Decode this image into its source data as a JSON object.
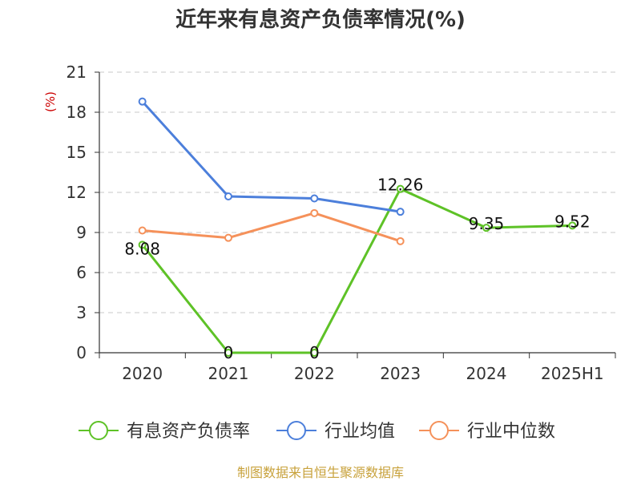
{
  "chart_data": {
    "type": "line",
    "title": "近年来有息资产负债率情况(%)",
    "ylabel": "(%)",
    "xlabel": "",
    "categories": [
      "2020",
      "2021",
      "2022",
      "2023",
      "2024",
      "2025H1"
    ],
    "ylim": [
      0,
      21
    ],
    "yticks": [
      "0",
      "3",
      "6",
      "9",
      "12",
      "15",
      "18",
      "21"
    ],
    "grid": "horizontal dashed",
    "legend_position": "bottom",
    "series": [
      {
        "name": "有息资产负债率",
        "color": "#5ec227",
        "values": [
          8.08,
          0,
          0,
          12.26,
          9.35,
          9.52
        ],
        "labels": [
          "8.08",
          "0",
          "0",
          "12.26",
          "9.35",
          "9.52"
        ]
      },
      {
        "name": "行业均值",
        "color": "#4c7fdb",
        "values": [
          18.8,
          11.7,
          11.55,
          10.55,
          null,
          null
        ]
      },
      {
        "name": "行业中位数",
        "color": "#f5915a",
        "values": [
          9.15,
          8.6,
          10.45,
          8.35,
          null,
          null
        ]
      }
    ],
    "source": "制图数据来自恒生聚源数据库"
  }
}
